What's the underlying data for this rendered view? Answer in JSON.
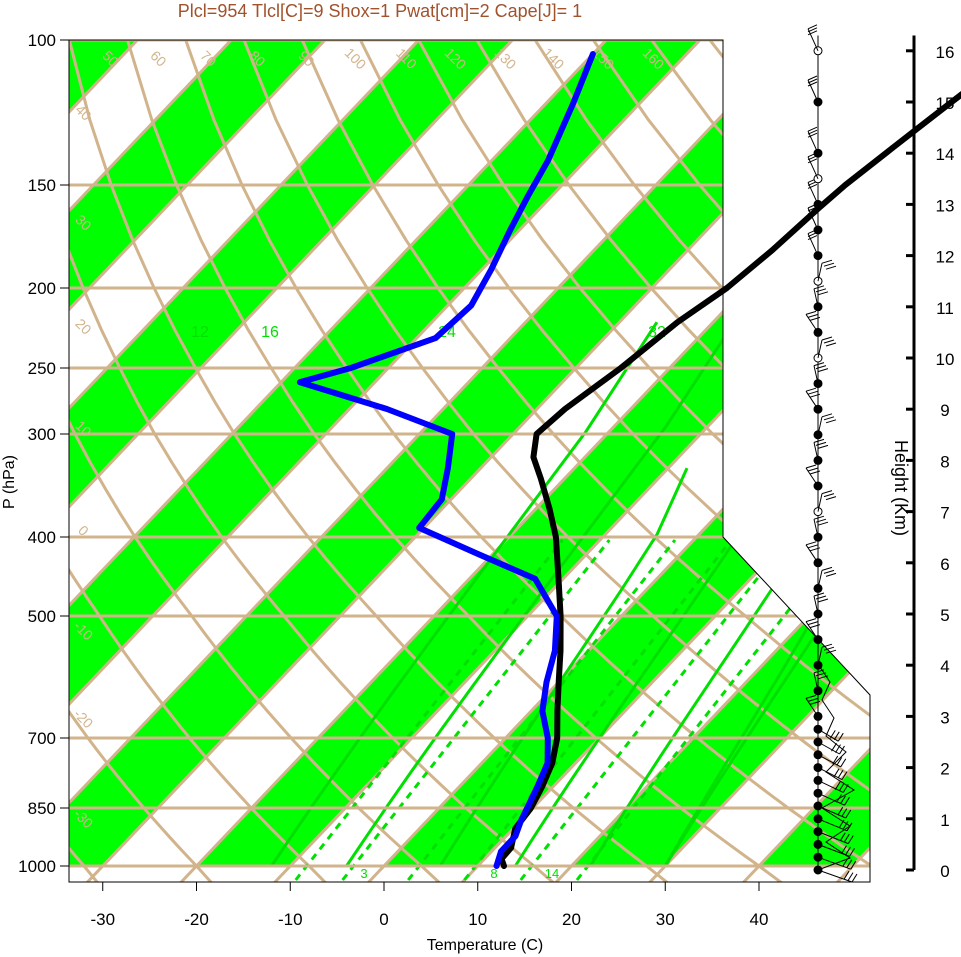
{
  "title": "Plcl=954 Tlcl[C]=9 Shox=1 Pwat[cm]=2 Cape[J]= 1",
  "colors": {
    "title": "#A0522D",
    "band": "#00FF00",
    "grid": "#D2B48C",
    "mixing_ratio": "#00E000",
    "temperature": "#000000",
    "dewpoint": "#0000FF"
  },
  "chart_data": {
    "type": "line",
    "subtype": "skew-t log-p sounding",
    "xlabel": "Temperature (C)",
    "ylabel": "P (hPa)",
    "right_axis_label": "Height (Km)",
    "pressure_ticks": [
      100,
      150,
      200,
      250,
      300,
      400,
      500,
      700,
      850,
      1000
    ],
    "temperature_ticks": [
      -30,
      -20,
      -10,
      0,
      10,
      20,
      30,
      40
    ],
    "height_ticks_km": [
      0,
      1,
      2,
      3,
      4,
      5,
      6,
      7,
      8,
      9,
      10,
      11,
      12,
      13,
      14,
      15,
      16
    ],
    "isotherm_labels": [
      50,
      60,
      70,
      80,
      90,
      100,
      110,
      120,
      130,
      140,
      150,
      160
    ],
    "skewed_labels_left": [
      40,
      30,
      20,
      10,
      0,
      -10,
      -20,
      -30
    ],
    "skewed_labels_right": [
      30,
      20,
      10,
      0,
      -10,
      -20,
      -30
    ],
    "mixing_ratio_labels": [
      12,
      16,
      24,
      32
    ],
    "mixing_ratio_bottom_labels": [
      3,
      8,
      14
    ],
    "series": [
      {
        "name": "Temperature",
        "points": [
          [
            1000,
            12.8
          ],
          [
            980,
            11.8
          ],
          [
            950,
            11.7
          ],
          [
            900,
            10.2
          ],
          [
            850,
            9.8
          ],
          [
            800,
            8.8
          ],
          [
            750,
            7.5
          ],
          [
            700,
            5.5
          ],
          [
            650,
            2.8
          ],
          [
            600,
            0.0
          ],
          [
            550,
            -3.0
          ],
          [
            500,
            -6.5
          ],
          [
            450,
            -10.5
          ],
          [
            400,
            -15.0
          ],
          [
            370,
            -18.5
          ],
          [
            340,
            -22.5
          ],
          [
            320,
            -25.5
          ],
          [
            300,
            -27.5
          ],
          [
            280,
            -27.0
          ],
          [
            250,
            -25.2
          ],
          [
            220,
            -23.8
          ],
          [
            200,
            -22.0
          ],
          [
            180,
            -21.0
          ],
          [
            160,
            -20.3
          ],
          [
            150,
            -19.8
          ],
          [
            135,
            -18.5
          ],
          [
            120,
            -17.0
          ],
          [
            110,
            -15.8
          ],
          [
            104,
            -15.5
          ]
        ]
      },
      {
        "name": "Dewpoint",
        "points": [
          [
            1000,
            12.0
          ],
          [
            960,
            11.0
          ],
          [
            920,
            11.0
          ],
          [
            880,
            10.0
          ],
          [
            850,
            9.4
          ],
          [
            800,
            8.3
          ],
          [
            750,
            7.0
          ],
          [
            700,
            4.5
          ],
          [
            650,
            1.2
          ],
          [
            600,
            -1.3
          ],
          [
            550,
            -3.6
          ],
          [
            500,
            -6.9
          ],
          [
            450,
            -13.0
          ],
          [
            420,
            -21.5
          ],
          [
            390,
            -30.5
          ],
          [
            360,
            -31.0
          ],
          [
            330,
            -33.5
          ],
          [
            300,
            -36.5
          ],
          [
            280,
            -46.0
          ],
          [
            260,
            -58.0
          ],
          [
            250,
            -54.0
          ],
          [
            230,
            -48.0
          ],
          [
            210,
            -47.5
          ],
          [
            190,
            -49.0
          ],
          [
            170,
            -51.0
          ],
          [
            155,
            -52.5
          ],
          [
            140,
            -54.0
          ],
          [
            120,
            -57.0
          ],
          [
            104,
            -60.0
          ]
        ]
      }
    ],
    "wind_barb_heights_km": [
      0,
      0.25,
      0.5,
      0.75,
      1.0,
      1.25,
      1.5,
      1.75,
      2.0,
      2.25,
      2.5,
      2.75,
      3.0,
      3.5,
      4.0,
      4.5,
      5.0,
      5.5,
      6.0,
      6.5,
      7.0,
      7.5,
      8.0,
      8.5,
      9.0,
      9.5,
      10.0,
      10.5,
      11.0,
      11.5,
      12.0,
      12.5,
      13.0,
      13.5,
      14.0,
      15.0,
      16.0
    ]
  }
}
